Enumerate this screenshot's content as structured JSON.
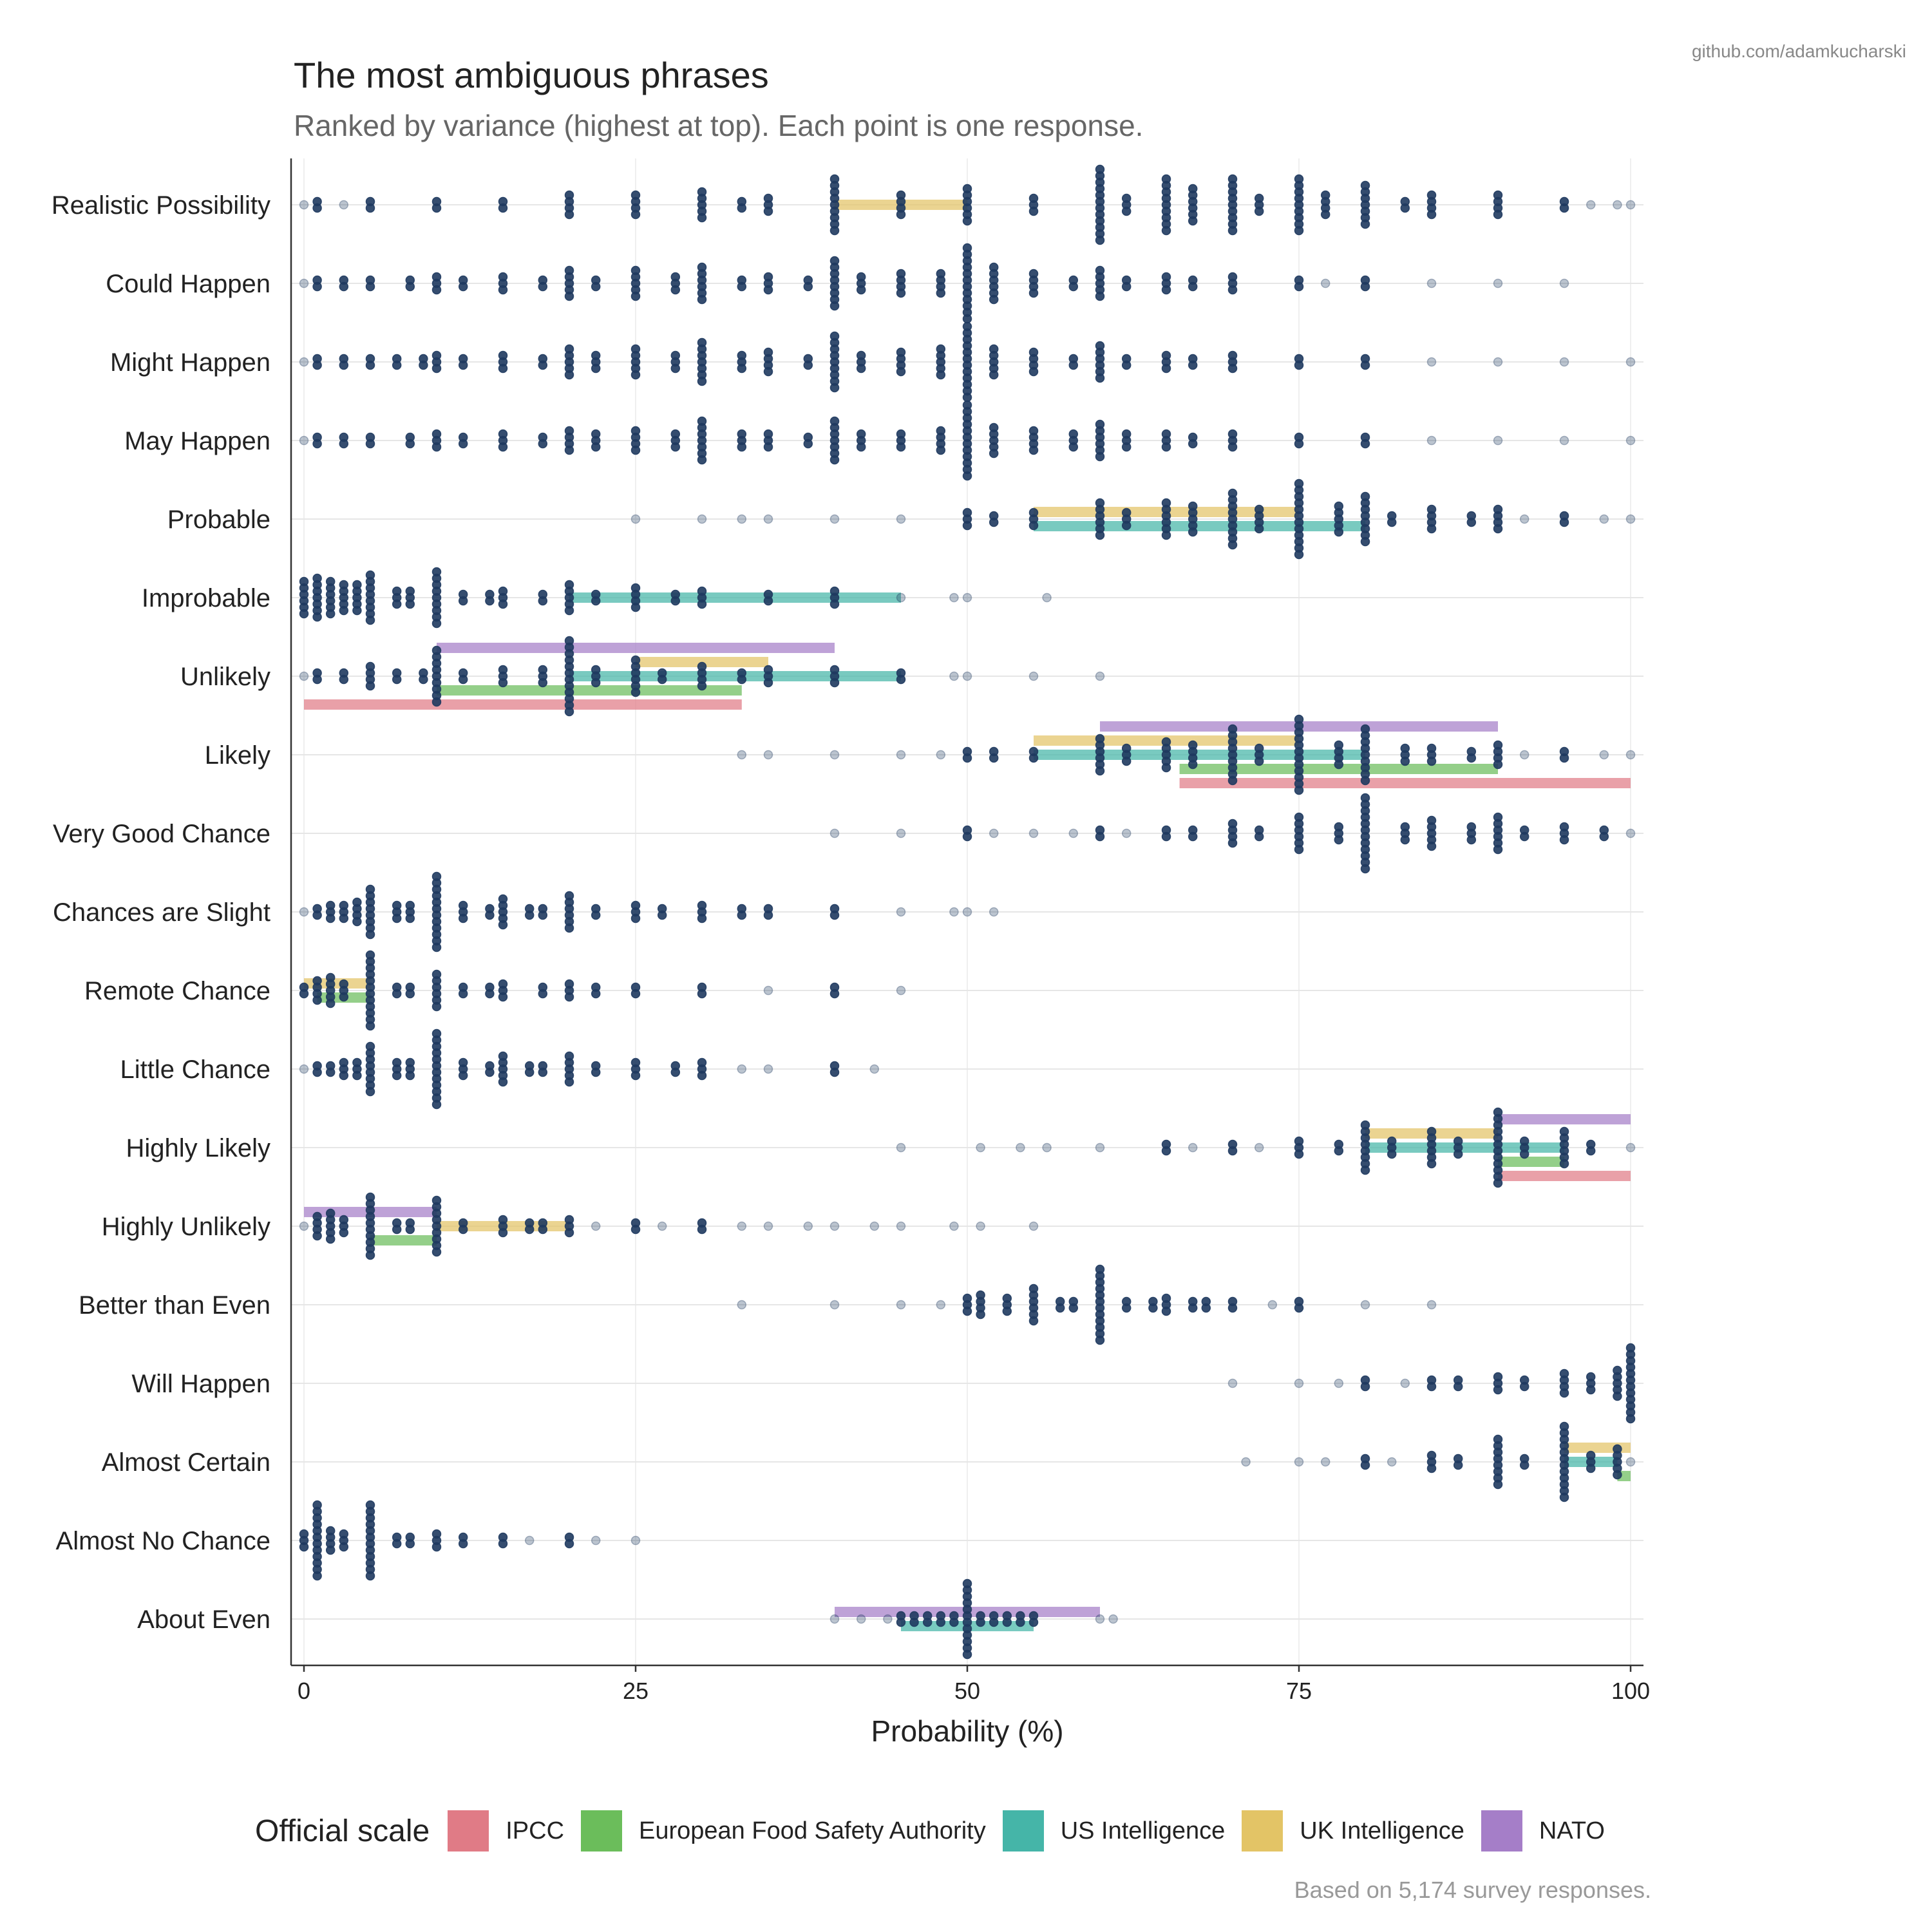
{
  "header": {
    "title": "The most ambiguous phrases",
    "subtitle": "Ranked by variance (highest at top). Each point is one response.",
    "credit": "github.com/adamkucharski"
  },
  "footer": {
    "caption": "Based on 5,174 survey responses."
  },
  "legend": {
    "title": "Official scale",
    "items": [
      {
        "label": "IPCC",
        "color": "#e07b86"
      },
      {
        "label": "European Food Safety Authority",
        "color": "#6bbd5b"
      },
      {
        "label": "US Intelligence",
        "color": "#45b5a8"
      },
      {
        "label": "UK Intelligence",
        "color": "#e3c466"
      },
      {
        "label": "NATO",
        "color": "#a57ec8"
      }
    ]
  },
  "colors": {
    "point": "#1f3a5f",
    "grid": "#e6e6e6",
    "axis": "#333333"
  },
  "chart_data": {
    "type": "strip",
    "title": "The most ambiguous phrases",
    "xlabel": "Probability (%)",
    "xlim": [
      0,
      100
    ],
    "xticks": [
      0,
      25,
      50,
      75,
      100
    ],
    "categories": [
      "Realistic Possibility",
      "Could Happen",
      "Might Happen",
      "May Happen",
      "Probable",
      "Improbable",
      "Unlikely",
      "Likely",
      "Very Good Chance",
      "Chances are Slight",
      "Remote Chance",
      "Little Chance",
      "Highly Likely",
      "Highly Unlikely",
      "Better than Even",
      "Will Happen",
      "Almost Certain",
      "Almost No Chance",
      "About Even"
    ],
    "responses": {
      "Realistic Possibility": {
        "0": 1,
        "1": 2,
        "3": 1,
        "5": 2,
        "10": 2,
        "15": 2,
        "20": 4,
        "25": 4,
        "30": 5,
        "33": 2,
        "35": 3,
        "40": 9,
        "45": 4,
        "50": 6,
        "55": 3,
        "60": 12,
        "62": 3,
        "65": 9,
        "67": 6,
        "70": 9,
        "72": 3,
        "75": 9,
        "77": 4,
        "80": 7,
        "83": 2,
        "85": 4,
        "90": 4,
        "95": 2,
        "97": 1,
        "99": 1,
        "100": 1
      },
      "Could Happen": {
        "0": 1,
        "1": 2,
        "3": 2,
        "5": 2,
        "8": 2,
        "10": 3,
        "12": 2,
        "15": 3,
        "18": 2,
        "20": 5,
        "22": 2,
        "25": 5,
        "28": 3,
        "30": 6,
        "33": 2,
        "35": 3,
        "38": 2,
        "40": 8,
        "42": 3,
        "45": 4,
        "48": 4,
        "50": 12,
        "52": 6,
        "55": 4,
        "58": 2,
        "60": 5,
        "62": 2,
        "65": 3,
        "67": 2,
        "70": 3,
        "75": 2,
        "77": 1,
        "80": 2,
        "85": 1,
        "90": 1,
        "95": 1
      },
      "Might Happen": {
        "0": 1,
        "1": 2,
        "3": 2,
        "5": 2,
        "7": 2,
        "9": 2,
        "10": 3,
        "12": 2,
        "15": 3,
        "18": 2,
        "20": 5,
        "22": 3,
        "25": 5,
        "28": 3,
        "30": 7,
        "33": 3,
        "35": 4,
        "38": 2,
        "40": 9,
        "42": 3,
        "45": 4,
        "48": 5,
        "50": 12,
        "52": 5,
        "55": 4,
        "58": 2,
        "60": 6,
        "62": 2,
        "65": 3,
        "67": 2,
        "70": 3,
        "75": 2,
        "80": 2,
        "85": 1,
        "90": 1,
        "95": 1,
        "100": 1
      },
      "May Happen": {
        "0": 1,
        "1": 2,
        "3": 2,
        "5": 2,
        "8": 2,
        "10": 3,
        "12": 2,
        "15": 3,
        "18": 2,
        "20": 4,
        "22": 3,
        "25": 4,
        "28": 3,
        "30": 7,
        "33": 3,
        "35": 3,
        "38": 2,
        "40": 7,
        "42": 3,
        "45": 3,
        "48": 4,
        "50": 12,
        "52": 5,
        "55": 4,
        "58": 3,
        "60": 6,
        "62": 3,
        "65": 3,
        "67": 2,
        "70": 3,
        "75": 2,
        "80": 2,
        "85": 1,
        "90": 1,
        "95": 1,
        "100": 1
      },
      "Probable": {
        "25": 1,
        "30": 1,
        "33": 1,
        "35": 1,
        "40": 1,
        "45": 1,
        "50": 3,
        "52": 2,
        "55": 3,
        "60": 6,
        "62": 3,
        "65": 6,
        "67": 5,
        "70": 9,
        "72": 4,
        "75": 12,
        "78": 5,
        "80": 8,
        "82": 2,
        "85": 4,
        "88": 2,
        "90": 4,
        "92": 1,
        "95": 2,
        "98": 1,
        "100": 1
      },
      "Improbable": {
        "0": 6,
        "1": 7,
        "2": 6,
        "3": 5,
        "4": 5,
        "5": 8,
        "7": 3,
        "8": 3,
        "10": 9,
        "12": 2,
        "14": 2,
        "15": 3,
        "18": 2,
        "20": 5,
        "22": 2,
        "25": 4,
        "28": 2,
        "30": 3,
        "35": 2,
        "40": 3,
        "45": 1,
        "49": 1,
        "50": 1,
        "56": 1
      },
      "Unlikely": {
        "0": 1,
        "1": 2,
        "3": 2,
        "5": 4,
        "7": 2,
        "9": 2,
        "10": 9,
        "12": 2,
        "15": 3,
        "18": 3,
        "20": 12,
        "22": 3,
        "25": 6,
        "27": 2,
        "30": 4,
        "33": 2,
        "35": 3,
        "40": 3,
        "45": 2,
        "49": 1,
        "50": 1,
        "55": 1,
        "60": 1
      },
      "Likely": {
        "33": 1,
        "35": 1,
        "40": 1,
        "45": 1,
        "48": 1,
        "50": 2,
        "52": 2,
        "55": 2,
        "60": 6,
        "62": 3,
        "65": 5,
        "67": 4,
        "70": 9,
        "72": 3,
        "75": 12,
        "78": 4,
        "80": 9,
        "83": 3,
        "85": 3,
        "88": 2,
        "90": 4,
        "92": 1,
        "95": 2,
        "98": 1,
        "100": 1
      },
      "Very Good Chance": {
        "40": 1,
        "45": 1,
        "50": 2,
        "52": 1,
        "55": 1,
        "58": 1,
        "60": 2,
        "62": 1,
        "65": 2,
        "67": 2,
        "70": 4,
        "72": 2,
        "75": 6,
        "78": 3,
        "80": 12,
        "83": 3,
        "85": 5,
        "88": 3,
        "90": 6,
        "92": 2,
        "95": 3,
        "98": 2,
        "100": 1
      },
      "Chances are Slight": {
        "0": 1,
        "1": 2,
        "2": 3,
        "3": 3,
        "4": 4,
        "5": 8,
        "7": 3,
        "8": 3,
        "10": 12,
        "12": 3,
        "14": 2,
        "15": 5,
        "17": 2,
        "18": 2,
        "20": 6,
        "22": 2,
        "25": 3,
        "27": 2,
        "30": 3,
        "33": 2,
        "35": 2,
        "40": 2,
        "45": 1,
        "49": 1,
        "50": 1,
        "52": 1
      },
      "Remote Chance": {
        "0": 2,
        "1": 4,
        "2": 5,
        "3": 3,
        "5": 12,
        "7": 2,
        "8": 2,
        "10": 6,
        "12": 2,
        "14": 2,
        "15": 3,
        "18": 2,
        "20": 3,
        "22": 2,
        "25": 2,
        "30": 2,
        "35": 1,
        "40": 2,
        "45": 1
      },
      "Little Chance": {
        "0": 1,
        "1": 2,
        "2": 2,
        "3": 3,
        "4": 3,
        "5": 8,
        "7": 3,
        "8": 3,
        "10": 12,
        "12": 3,
        "14": 2,
        "15": 5,
        "17": 2,
        "18": 2,
        "20": 5,
        "22": 2,
        "25": 3,
        "28": 2,
        "30": 3,
        "33": 1,
        "35": 1,
        "40": 2,
        "43": 1
      },
      "Highly Likely": {
        "45": 1,
        "51": 1,
        "54": 1,
        "56": 1,
        "60": 1,
        "65": 2,
        "67": 1,
        "70": 2,
        "72": 1,
        "75": 3,
        "78": 2,
        "80": 8,
        "82": 3,
        "85": 6,
        "87": 3,
        "90": 12,
        "92": 3,
        "95": 6,
        "97": 2,
        "100": 1
      },
      "Highly Unlikely": {
        "0": 1,
        "1": 4,
        "2": 5,
        "3": 3,
        "5": 10,
        "7": 2,
        "8": 2,
        "10": 9,
        "12": 2,
        "15": 3,
        "17": 2,
        "18": 2,
        "20": 3,
        "22": 1,
        "25": 2,
        "27": 1,
        "30": 2,
        "33": 1,
        "35": 1,
        "38": 1,
        "40": 1,
        "43": 1,
        "45": 1,
        "49": 1,
        "51": 1,
        "55": 1
      },
      "Better than Even": {
        "33": 1,
        "40": 1,
        "45": 1,
        "48": 1,
        "50": 3,
        "51": 4,
        "53": 3,
        "55": 6,
        "57": 2,
        "58": 2,
        "60": 12,
        "62": 2,
        "64": 2,
        "65": 3,
        "67": 2,
        "68": 2,
        "70": 2,
        "73": 1,
        "75": 2,
        "80": 1,
        "85": 1
      },
      "Will Happen": {
        "70": 1,
        "75": 1,
        "78": 1,
        "80": 2,
        "83": 1,
        "85": 2,
        "87": 2,
        "90": 3,
        "92": 2,
        "95": 4,
        "97": 3,
        "99": 5,
        "100": 12
      },
      "Almost Certain": {
        "71": 1,
        "75": 1,
        "77": 1,
        "80": 2,
        "82": 1,
        "85": 3,
        "87": 2,
        "90": 8,
        "92": 2,
        "95": 12,
        "97": 3,
        "99": 5,
        "100": 1
      },
      "Almost No Chance": {
        "0": 3,
        "1": 12,
        "2": 4,
        "3": 3,
        "5": 12,
        "7": 2,
        "8": 2,
        "10": 3,
        "12": 2,
        "15": 2,
        "17": 1,
        "20": 2,
        "22": 1,
        "25": 1
      },
      "About Even": {
        "40": 1,
        "42": 1,
        "44": 1,
        "45": 2,
        "46": 2,
        "47": 2,
        "48": 2,
        "49": 2,
        "50": 12,
        "51": 2,
        "52": 2,
        "53": 2,
        "54": 2,
        "55": 2,
        "60": 1,
        "61": 1
      }
    },
    "official_ranges": [
      {
        "phrase": "Realistic Possibility",
        "scale": "UK Intelligence",
        "range": [
          40,
          50
        ]
      },
      {
        "phrase": "Probable",
        "scale": "UK Intelligence",
        "range": [
          55,
          75
        ]
      },
      {
        "phrase": "Probable",
        "scale": "US Intelligence",
        "range": [
          55,
          80
        ]
      },
      {
        "phrase": "Improbable",
        "scale": "US Intelligence",
        "range": [
          20,
          45
        ]
      },
      {
        "phrase": "Unlikely",
        "scale": "NATO",
        "range": [
          10,
          40
        ]
      },
      {
        "phrase": "Unlikely",
        "scale": "UK Intelligence",
        "range": [
          25,
          35
        ]
      },
      {
        "phrase": "Unlikely",
        "scale": "US Intelligence",
        "range": [
          20,
          45
        ]
      },
      {
        "phrase": "Unlikely",
        "scale": "European Food Safety Authority",
        "range": [
          10,
          33
        ]
      },
      {
        "phrase": "Unlikely",
        "scale": "IPCC",
        "range": [
          0,
          33
        ]
      },
      {
        "phrase": "Likely",
        "scale": "NATO",
        "range": [
          60,
          90
        ]
      },
      {
        "phrase": "Likely",
        "scale": "UK Intelligence",
        "range": [
          55,
          75
        ]
      },
      {
        "phrase": "Likely",
        "scale": "US Intelligence",
        "range": [
          55,
          80
        ]
      },
      {
        "phrase": "Likely",
        "scale": "European Food Safety Authority",
        "range": [
          66,
          90
        ]
      },
      {
        "phrase": "Likely",
        "scale": "IPCC",
        "range": [
          66,
          100
        ]
      },
      {
        "phrase": "Remote Chance",
        "scale": "UK Intelligence",
        "range": [
          0,
          5
        ]
      },
      {
        "phrase": "Remote Chance",
        "scale": "European Food Safety Authority",
        "range": [
          1,
          5
        ]
      },
      {
        "phrase": "Highly Likely",
        "scale": "NATO",
        "range": [
          90,
          100
        ]
      },
      {
        "phrase": "Highly Likely",
        "scale": "UK Intelligence",
        "range": [
          80,
          90
        ]
      },
      {
        "phrase": "Highly Likely",
        "scale": "US Intelligence",
        "range": [
          80,
          95
        ]
      },
      {
        "phrase": "Highly Likely",
        "scale": "European Food Safety Authority",
        "range": [
          90,
          95
        ]
      },
      {
        "phrase": "Highly Likely",
        "scale": "IPCC",
        "range": [
          90,
          100
        ]
      },
      {
        "phrase": "Highly Unlikely",
        "scale": "NATO",
        "range": [
          0,
          10
        ]
      },
      {
        "phrase": "Highly Unlikely",
        "scale": "UK Intelligence",
        "range": [
          10,
          20
        ]
      },
      {
        "phrase": "Highly Unlikely",
        "scale": "European Food Safety Authority",
        "range": [
          5,
          10
        ]
      },
      {
        "phrase": "Almost Certain",
        "scale": "UK Intelligence",
        "range": [
          95,
          100
        ]
      },
      {
        "phrase": "Almost Certain",
        "scale": "US Intelligence",
        "range": [
          95,
          99
        ]
      },
      {
        "phrase": "Almost Certain",
        "scale": "European Food Safety Authority",
        "range": [
          99,
          100
        ]
      },
      {
        "phrase": "About Even",
        "scale": "NATO",
        "range": [
          40,
          60
        ]
      },
      {
        "phrase": "About Even",
        "scale": "US Intelligence",
        "range": [
          45,
          55
        ]
      }
    ]
  }
}
